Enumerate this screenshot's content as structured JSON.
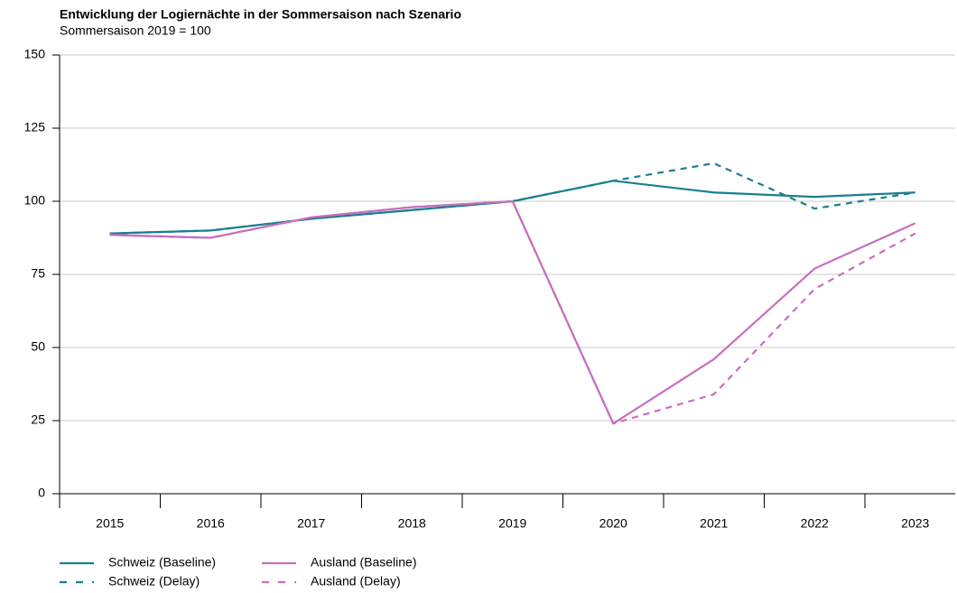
{
  "chart_data": {
    "type": "line",
    "title": "Entwicklung der Logiernächte in der Sommersaison nach Szenario",
    "subtitle": "Sommersaison 2019 = 100",
    "categories": [
      "2015",
      "2016",
      "2017",
      "2018",
      "2019",
      "2020",
      "2021",
      "2022",
      "2023"
    ],
    "series": [
      {
        "name": "Schweiz (Baseline)",
        "color": "#1a7f8e",
        "linestyle": "solid",
        "values": [
          89,
          90,
          94,
          97,
          100,
          107,
          103,
          101.5,
          103
        ]
      },
      {
        "name": "Schweiz (Delay)",
        "color": "#1a7f8e",
        "linestyle": "dashed",
        "values": [
          89,
          90,
          94,
          97,
          100,
          107,
          113,
          97.5,
          103
        ]
      },
      {
        "name": "Ausland (Baseline)",
        "color": "#c86dbf",
        "linestyle": "solid",
        "values": [
          88.5,
          87.5,
          94.5,
          98,
          100,
          24,
          46,
          77,
          92.5
        ]
      },
      {
        "name": "Ausland (Delay)",
        "color": "#c86dbf",
        "linestyle": "dashed",
        "values": [
          88.5,
          87.5,
          94.5,
          98,
          100,
          24,
          34,
          70,
          89
        ]
      }
    ],
    "ylim": [
      0,
      150
    ],
    "yticks": [
      0,
      25,
      50,
      75,
      100,
      125,
      150
    ],
    "grid": true
  }
}
